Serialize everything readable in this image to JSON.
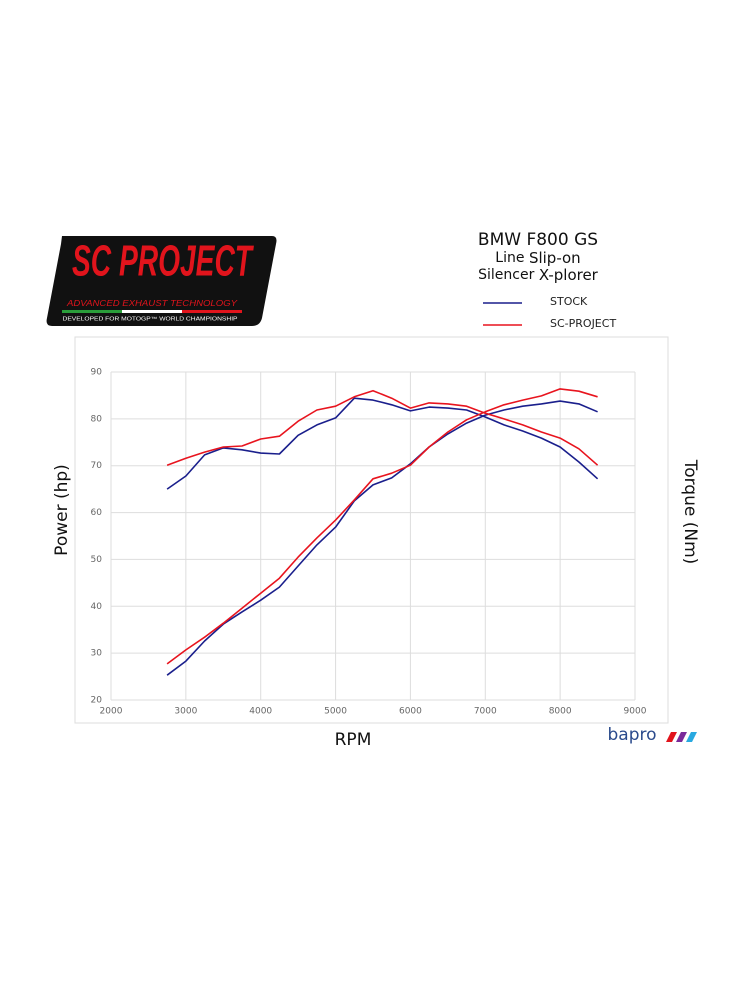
{
  "logo": {
    "brand": "SC PROJECT",
    "tagline": "ADVANCED EXHAUST TECHNOLOGY",
    "footer": "DEVELOPED FOR MOTOGP™ WORLD CHAMPIONSHIP"
  },
  "watermark": "bapro",
  "chart_data": {
    "type": "line",
    "title": "BMW F800 GS",
    "subtitle_lines": [
      [
        "Line",
        "Slip-on"
      ],
      [
        "Silencer",
        "X-plorer"
      ]
    ],
    "xlabel": "RPM",
    "ylabel": "Power (hp)",
    "y2label": "Torque (Nm)",
    "x": [
      2750,
      3000,
      3250,
      3500,
      3750,
      4000,
      4250,
      4500,
      4750,
      5000,
      5250,
      5500,
      5750,
      6000,
      6250,
      6500,
      6750,
      7000,
      7250,
      7500,
      7750,
      8000,
      8250,
      8500
    ],
    "xlim": [
      2000,
      9000
    ],
    "xticks": [
      2000,
      3000,
      4000,
      5000,
      6000,
      7000,
      8000,
      9000
    ],
    "ylim": [
      20,
      90
    ],
    "yticks": [
      20,
      30,
      40,
      50,
      60,
      70,
      80,
      90
    ],
    "grid": true,
    "series": [
      {
        "name": "STOCK",
        "color": "#1a1f8c",
        "power": [
          25.3,
          28.3,
          32.6,
          36.2,
          38.8,
          41.3,
          44.1,
          48.6,
          53.1,
          56.9,
          62.5,
          65.9,
          67.4,
          70.4,
          74,
          76.8,
          79.1,
          80.8,
          81.9,
          82.7,
          83.2,
          83.8,
          83.2,
          81.5
        ],
        "torque": [
          65,
          67.8,
          72.3,
          73.8,
          73.4,
          72.7,
          72.5,
          76.5,
          78.7,
          80.2,
          84.4,
          84,
          83,
          81.7,
          82.5,
          82.3,
          81.9,
          80.4,
          78.7,
          77.4,
          75.9,
          74,
          70.8,
          67.2
        ]
      },
      {
        "name": "SC-PROJECT",
        "color": "#e8141e",
        "power": [
          27.7,
          30.7,
          33.4,
          36.4,
          39.6,
          42.8,
          46,
          50.5,
          54.6,
          58.4,
          62.7,
          67.2,
          68.4,
          70.1,
          74,
          77.2,
          79.8,
          81.5,
          83,
          84,
          84.9,
          86.4,
          85.9,
          84.7
        ],
        "torque": [
          70.1,
          71.6,
          72.9,
          74,
          74.2,
          75.7,
          76.3,
          79.5,
          81.9,
          82.7,
          84.7,
          86,
          84.4,
          82.3,
          83.4,
          83.2,
          82.7,
          81.2,
          80,
          78.7,
          77.2,
          75.9,
          73.6,
          70.1
        ]
      }
    ]
  }
}
